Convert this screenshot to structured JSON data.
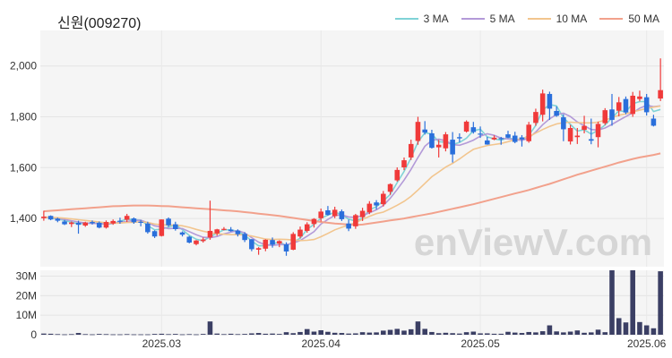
{
  "title": "신원(009270)",
  "watermark": "enViewV.com",
  "legend": [
    {
      "label": "3 MA",
      "color": "#7fd3d6"
    },
    {
      "label": "5 MA",
      "color": "#b39ad8"
    },
    {
      "label": "10 MA",
      "color": "#f2c58e"
    },
    {
      "label": "50 MA",
      "color": "#f2a18c"
    }
  ],
  "colors": {
    "up": "#f03a3a",
    "down": "#2a6fdb",
    "volume": "#3b3f64"
  },
  "chart_data": {
    "type": "candlestick",
    "price_axis": {
      "ticks": [
        1400,
        1600,
        1800,
        2000
      ],
      "tick_labels": [
        "1,400",
        "1,600",
        "1,800",
        "2,000"
      ],
      "ylim": [
        1210,
        2140
      ]
    },
    "volume_axis": {
      "ticks": [
        0,
        10,
        20,
        30
      ],
      "tick_labels": [
        "0",
        "10M",
        "20M",
        "30M"
      ],
      "ylim": [
        0,
        33
      ],
      "unit": "M"
    },
    "x_ticks": [
      {
        "index": 17,
        "label": "2025.03"
      },
      {
        "index": 40,
        "label": "2025.04"
      },
      {
        "index": 63,
        "label": "2025.05"
      },
      {
        "index": 87,
        "label": "2025.06"
      }
    ],
    "ohlc": [
      [
        1401,
        1430,
        1391,
        1407
      ],
      [
        1410,
        1412,
        1393,
        1396
      ],
      [
        1399,
        1403,
        1385,
        1391
      ],
      [
        1388,
        1394,
        1374,
        1377
      ],
      [
        1378,
        1388,
        1366,
        1384
      ],
      [
        1383,
        1391,
        1340,
        1375
      ],
      [
        1372,
        1387,
        1367,
        1384
      ],
      [
        1386,
        1392,
        1376,
        1381
      ],
      [
        1383,
        1388,
        1361,
        1364
      ],
      [
        1364,
        1392,
        1360,
        1386
      ],
      [
        1380,
        1396,
        1375,
        1390
      ],
      [
        1391,
        1403,
        1379,
        1390
      ],
      [
        1395,
        1418,
        1386,
        1410
      ],
      [
        1400,
        1404,
        1379,
        1385
      ],
      [
        1387,
        1393,
        1369,
        1386
      ],
      [
        1380,
        1387,
        1340,
        1346
      ],
      [
        1350,
        1353,
        1323,
        1329
      ],
      [
        1331,
        1396,
        1329,
        1396
      ],
      [
        1399,
        1404,
        1367,
        1373
      ],
      [
        1377,
        1387,
        1352,
        1358
      ],
      [
        1345,
        1349,
        1329,
        1336
      ],
      [
        1328,
        1331,
        1302,
        1305
      ],
      [
        1299,
        1315,
        1294,
        1313
      ],
      [
        1311,
        1325,
        1305,
        1317
      ],
      [
        1325,
        1470,
        1316,
        1351
      ],
      [
        1341,
        1359,
        1332,
        1357
      ],
      [
        1357,
        1366,
        1353,
        1359
      ],
      [
        1356,
        1366,
        1348,
        1350
      ],
      [
        1352,
        1357,
        1329,
        1338
      ],
      [
        1339,
        1346,
        1307,
        1315
      ],
      [
        1318,
        1319,
        1271,
        1279
      ],
      [
        1277,
        1287,
        1257,
        1283
      ],
      [
        1281,
        1318,
        1271,
        1316
      ],
      [
        1315,
        1325,
        1285,
        1297
      ],
      [
        1301,
        1314,
        1287,
        1311
      ],
      [
        1298,
        1306,
        1253,
        1270
      ],
      [
        1277,
        1346,
        1275,
        1339
      ],
      [
        1329,
        1368,
        1322,
        1356
      ],
      [
        1351,
        1385,
        1344,
        1377
      ],
      [
        1378,
        1401,
        1364,
        1398
      ],
      [
        1401,
        1439,
        1388,
        1427
      ],
      [
        1432,
        1449,
        1411,
        1414
      ],
      [
        1409,
        1446,
        1401,
        1434
      ],
      [
        1428,
        1435,
        1390,
        1397
      ],
      [
        1380,
        1395,
        1350,
        1360
      ],
      [
        1369,
        1418,
        1359,
        1413
      ],
      [
        1405,
        1442,
        1390,
        1430
      ],
      [
        1424,
        1468,
        1417,
        1458
      ],
      [
        1463,
        1472,
        1435,
        1451
      ],
      [
        1456,
        1508,
        1447,
        1497
      ],
      [
        1505,
        1538,
        1493,
        1535
      ],
      [
        1550,
        1601,
        1545,
        1591
      ],
      [
        1601,
        1640,
        1590,
        1629
      ],
      [
        1640,
        1710,
        1630,
        1693
      ],
      [
        1705,
        1800,
        1690,
        1780
      ],
      [
        1750,
        1783,
        1730,
        1738
      ],
      [
        1735,
        1749,
        1675,
        1678
      ],
      [
        1680,
        1709,
        1640,
        1690
      ],
      [
        1676,
        1740,
        1664,
        1731
      ],
      [
        1710,
        1740,
        1620,
        1652
      ],
      [
        1720,
        1735,
        1700,
        1715
      ],
      [
        1742,
        1786,
        1738,
        1781
      ],
      [
        1759,
        1780,
        1734,
        1740
      ],
      [
        1734,
        1762,
        1717,
        1731
      ],
      [
        1707,
        1721,
        1690,
        1691
      ],
      [
        1711,
        1727,
        1708,
        1718
      ],
      [
        1716,
        1721,
        1690,
        1714
      ],
      [
        1731,
        1745,
        1716,
        1718
      ],
      [
        1726,
        1741,
        1696,
        1701
      ],
      [
        1719,
        1728,
        1683,
        1711
      ],
      [
        1704,
        1780,
        1698,
        1769
      ],
      [
        1776,
        1832,
        1765,
        1819
      ],
      [
        1808,
        1907,
        1782,
        1892
      ],
      [
        1890,
        1899,
        1788,
        1832
      ],
      [
        1823,
        1841,
        1800,
        1804
      ],
      [
        1798,
        1810,
        1704,
        1751
      ],
      [
        1703,
        1768,
        1691,
        1756
      ],
      [
        1720,
        1756,
        1693,
        1726
      ],
      [
        1749,
        1804,
        1735,
        1764
      ],
      [
        1712,
        1793,
        1692,
        1706
      ],
      [
        1720,
        1781,
        1680,
        1772
      ],
      [
        1775,
        1834,
        1768,
        1826
      ],
      [
        1829,
        1890,
        1765,
        1788
      ],
      [
        1824,
        1878,
        1802,
        1857
      ],
      [
        1870,
        1880,
        1810,
        1817
      ],
      [
        1811,
        1898,
        1800,
        1883
      ],
      [
        1870,
        1903,
        1861,
        1880
      ],
      [
        1877,
        1890,
        1805,
        1818
      ],
      [
        1793,
        1808,
        1762,
        1765
      ],
      [
        1872,
        2030,
        1862,
        1905
      ]
    ],
    "volume_m": [
      0.6,
      0.5,
      0.3,
      0.2,
      0.3,
      0.9,
      0.3,
      0.2,
      0.4,
      0.3,
      0.2,
      0.2,
      0.3,
      0.2,
      0.2,
      0.2,
      0.4,
      0.5,
      0.3,
      0.4,
      0.2,
      0.3,
      0.2,
      0.4,
      6.8,
      0.6,
      0.3,
      0.5,
      0.3,
      0.4,
      0.7,
      0.9,
      0.5,
      0.6,
      0.4,
      1.3,
      0.8,
      1.4,
      2.9,
      1.6,
      2.3,
      1.5,
      1.0,
      0.9,
      0.6,
      0.7,
      1.3,
      1.1,
      1.2,
      2.1,
      2.5,
      3.0,
      2.1,
      2.8,
      6.8,
      3.0,
      1.4,
      0.8,
      1.0,
      0.8,
      0.6,
      1.3,
      1.6,
      0.7,
      0.7,
      0.5,
      0.5,
      1.5,
      1.1,
      0.9,
      1.4,
      1.2,
      1.8,
      4.8,
      1.7,
      1.2,
      1.6,
      2.2,
      1.0,
      1.2,
      2.6,
      1.3,
      33.0,
      8.5,
      6.3,
      33.0,
      6.5,
      4.8,
      3.3,
      32.5
    ],
    "ma": {
      "ma3": [
        1405,
        1402,
        1398,
        1392,
        1385,
        1379,
        1381,
        1382,
        1380,
        1377,
        1380,
        1389,
        1397,
        1395,
        1394,
        1372,
        1355,
        1358,
        1366,
        1375,
        1356,
        1333,
        1318,
        1312,
        1328,
        1342,
        1355,
        1355,
        1349,
        1334,
        1311,
        1292,
        1293,
        1299,
        1308,
        1293,
        1307,
        1322,
        1357,
        1377,
        1401,
        1413,
        1425,
        1415,
        1397,
        1390,
        1401,
        1434,
        1446,
        1469,
        1494,
        1541,
        1585,
        1638,
        1701,
        1737,
        1732,
        1702,
        1700,
        1691,
        1699,
        1716,
        1745,
        1751,
        1721,
        1713,
        1708,
        1717,
        1711,
        1710,
        1727,
        1766,
        1827,
        1848,
        1843,
        1796,
        1770,
        1744,
        1749,
        1732,
        1747,
        1768,
        1796,
        1824,
        1820,
        1852,
        1860,
        1860,
        1821,
        1829
      ],
      "ma5": [
        1405,
        1404,
        1401,
        1396,
        1391,
        1386,
        1382,
        1380,
        1380,
        1378,
        1381,
        1386,
        1388,
        1392,
        1393,
        1383,
        1371,
        1366,
        1360,
        1361,
        1360,
        1348,
        1336,
        1326,
        1324,
        1329,
        1339,
        1346,
        1352,
        1343,
        1324,
        1307,
        1296,
        1294,
        1297,
        1297,
        1303,
        1313,
        1330,
        1348,
        1378,
        1396,
        1412,
        1414,
        1406,
        1404,
        1411,
        1422,
        1434,
        1451,
        1479,
        1514,
        1551,
        1593,
        1640,
        1684,
        1707,
        1712,
        1706,
        1691,
        1688,
        1697,
        1708,
        1724,
        1733,
        1727,
        1716,
        1713,
        1711,
        1707,
        1717,
        1740,
        1769,
        1792,
        1809,
        1814,
        1801,
        1780,
        1765,
        1750,
        1748,
        1756,
        1770,
        1786,
        1801,
        1816,
        1834,
        1845,
        1840,
        1843
      ],
      "ma10": [
        1405,
        1404,
        1403,
        1401,
        1398,
        1395,
        1392,
        1389,
        1386,
        1383,
        1381,
        1382,
        1384,
        1385,
        1387,
        1384,
        1378,
        1375,
        1374,
        1374,
        1371,
        1365,
        1357,
        1350,
        1344,
        1340,
        1338,
        1336,
        1336,
        1335,
        1331,
        1325,
        1319,
        1317,
        1318,
        1317,
        1315,
        1313,
        1314,
        1317,
        1328,
        1341,
        1355,
        1365,
        1374,
        1384,
        1396,
        1408,
        1419,
        1425,
        1438,
        1452,
        1467,
        1487,
        1512,
        1538,
        1564,
        1583,
        1602,
        1617,
        1634,
        1654,
        1672,
        1680,
        1687,
        1691,
        1695,
        1702,
        1710,
        1714,
        1722,
        1736,
        1750,
        1762,
        1772,
        1777,
        1779,
        1777,
        1776,
        1776,
        1779,
        1787,
        1797,
        1806,
        1812,
        1819,
        1826,
        1833,
        1838,
        1842
      ],
      "ma50": [
        1428,
        1430,
        1432,
        1434,
        1436,
        1438,
        1440,
        1442,
        1444,
        1446,
        1448,
        1449,
        1450,
        1451,
        1451,
        1451,
        1450,
        1449,
        1448,
        1446,
        1444,
        1442,
        1440,
        1438,
        1436,
        1434,
        1432,
        1430,
        1428,
        1425,
        1422,
        1419,
        1416,
        1413,
        1410,
        1406,
        1402,
        1398,
        1394,
        1390,
        1386,
        1383,
        1380,
        1378,
        1376,
        1374,
        1376,
        1380,
        1384,
        1388,
        1392,
        1396,
        1400,
        1405,
        1410,
        1415,
        1420,
        1426,
        1432,
        1438,
        1444,
        1450,
        1456,
        1463,
        1470,
        1477,
        1484,
        1491,
        1498,
        1505,
        1512,
        1520,
        1528,
        1536,
        1545,
        1554,
        1563,
        1572,
        1580,
        1588,
        1596,
        1604,
        1612,
        1620,
        1627,
        1634,
        1640,
        1645,
        1650,
        1656
      ]
    }
  }
}
